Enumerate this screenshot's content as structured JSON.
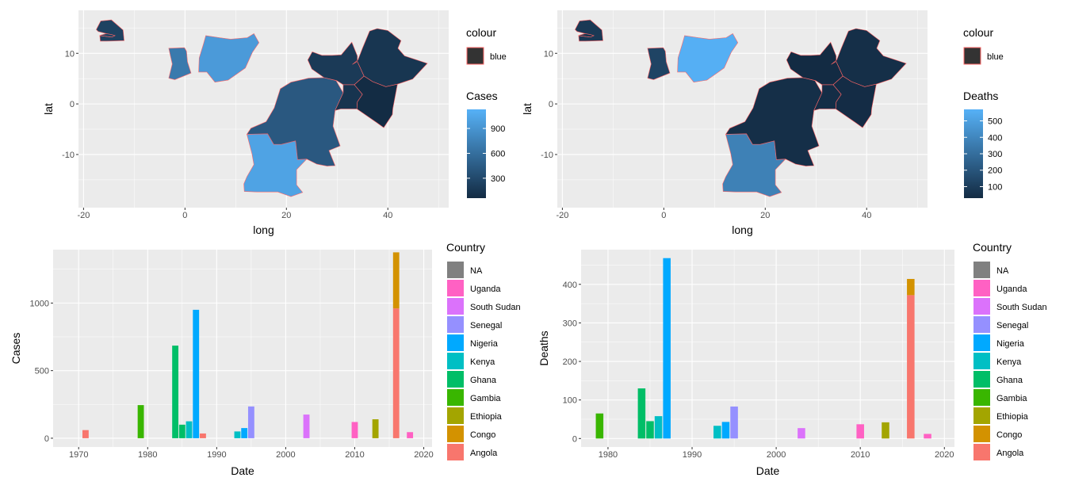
{
  "chart_data": [
    {
      "type": "map",
      "xlabel": "long",
      "ylabel": "lat",
      "xlim": [
        -21,
        52
      ],
      "ylim": [
        -20.5,
        18.5
      ],
      "x_ticks": [
        -20,
        0,
        20,
        40
      ],
      "y_ticks": [
        -10,
        0,
        10
      ],
      "x_tick_labels": [
        "-20",
        "0",
        "20",
        "40"
      ],
      "y_tick_labels": [
        "-10",
        "0",
        "10"
      ],
      "outline_legend": {
        "title": "colour",
        "label": "blue"
      },
      "fill_legend": {
        "title": "Cases",
        "range": [
          60,
          1130
        ],
        "ticks": [
          300,
          600,
          900
        ],
        "tick_labels": [
          "300",
          "600",
          "900"
        ]
      },
      "regions": [
        {
          "country": "Senegal",
          "value": 240
        },
        {
          "country": "Gambia",
          "value": 250
        },
        {
          "country": "Ghana",
          "value": 690
        },
        {
          "country": "Nigeria",
          "value": 950
        },
        {
          "country": "Congo",
          "value": 420
        },
        {
          "country": "Angola",
          "value": 1020
        },
        {
          "country": "South Sudan",
          "value": 180
        },
        {
          "country": "Ethiopia",
          "value": 145
        },
        {
          "country": "Uganda",
          "value": 130
        },
        {
          "country": "Kenya",
          "value": 65
        }
      ]
    },
    {
      "type": "map",
      "xlabel": "long",
      "ylabel": "lat",
      "xlim": [
        -21,
        52
      ],
      "ylim": [
        -20.5,
        18.5
      ],
      "x_ticks": [
        -20,
        0,
        20,
        40
      ],
      "y_ticks": [
        -10,
        0,
        10
      ],
      "x_tick_labels": [
        "-20",
        "0",
        "20",
        "40"
      ],
      "y_tick_labels": [
        "-10",
        "0",
        "10"
      ],
      "outline_legend": {
        "title": "colour",
        "label": "blue"
      },
      "fill_legend": {
        "title": "Deaths",
        "range": [
          30,
          570
        ],
        "ticks": [
          100,
          200,
          300,
          400,
          500
        ],
        "tick_labels": [
          "100",
          "200",
          "300",
          "400",
          "500"
        ]
      },
      "regions": [
        {
          "country": "Senegal",
          "value": 85
        },
        {
          "country": "Gambia",
          "value": 65
        },
        {
          "country": "Ghana",
          "value": 130
        },
        {
          "country": "Nigeria",
          "value": 560
        },
        {
          "country": "Congo",
          "value": 45
        },
        {
          "country": "Angola",
          "value": 375
        },
        {
          "country": "South Sudan",
          "value": 30
        },
        {
          "country": "Ethiopia",
          "value": 45
        },
        {
          "country": "Uganda",
          "value": 40
        },
        {
          "country": "Kenya",
          "value": 35
        }
      ]
    },
    {
      "type": "bar",
      "xlabel": "Date",
      "ylabel": "Cases",
      "xlim": [
        1966.3,
        2021.2
      ],
      "ylim": [
        -65,
        1395
      ],
      "x_ticks": [
        1970,
        1980,
        1990,
        2000,
        2010,
        2020
      ],
      "y_ticks": [
        0,
        500,
        1000
      ],
      "x_tick_labels": [
        "1970",
        "1980",
        "1990",
        "2000",
        "2010",
        "2020"
      ],
      "y_tick_labels": [
        "0",
        "500",
        "1000"
      ],
      "legend_title": "Country",
      "bars": [
        {
          "x": 1971,
          "country": "Angola",
          "value": 60
        },
        {
          "x": 1979,
          "country": "Gambia",
          "value": 245
        },
        {
          "x": 1984,
          "country": "Ghana",
          "value": 685
        },
        {
          "x": 1985,
          "country": "Ghana",
          "value": 100
        },
        {
          "x": 1986,
          "country": "Kenya",
          "value": 125
        },
        {
          "x": 1987,
          "country": "Nigeria",
          "value": 950
        },
        {
          "x": 1988,
          "country": "Angola",
          "value": 35
        },
        {
          "x": 1993,
          "country": "Kenya",
          "value": 50
        },
        {
          "x": 1994,
          "country": "Nigeria",
          "value": 75
        },
        {
          "x": 1995,
          "country": "Senegal",
          "value": 235
        },
        {
          "x": 2003,
          "country": "South Sudan",
          "value": 175
        },
        {
          "x": 2010,
          "country": "Uganda",
          "value": 120
        },
        {
          "x": 2013,
          "country": "Ethiopia",
          "value": 140
        },
        {
          "x": 2016,
          "country": "Angola",
          "value": 960
        },
        {
          "x": 2016,
          "country": "Congo",
          "value": 415
        },
        {
          "x": 2018,
          "country": "Uganda",
          "value": 45
        }
      ]
    },
    {
      "type": "bar",
      "xlabel": "Date",
      "ylabel": "Deaths",
      "xlim": [
        1976.8,
        2021.2
      ],
      "ylim": [
        -22,
        490
      ],
      "x_ticks": [
        1980,
        1990,
        2000,
        2010,
        2020
      ],
      "y_ticks": [
        0,
        100,
        200,
        300,
        400
      ],
      "x_tick_labels": [
        "1980",
        "1990",
        "2000",
        "2010",
        "2020"
      ],
      "y_tick_labels": [
        "0",
        "100",
        "200",
        "300",
        "400"
      ],
      "legend_title": "Country",
      "bars": [
        {
          "x": 1979,
          "country": "Gambia",
          "value": 65
        },
        {
          "x": 1984,
          "country": "Ghana",
          "value": 130
        },
        {
          "x": 1985,
          "country": "Ghana",
          "value": 45
        },
        {
          "x": 1986,
          "country": "Kenya",
          "value": 58
        },
        {
          "x": 1987,
          "country": "Nigeria",
          "value": 468
        },
        {
          "x": 1993,
          "country": "Kenya",
          "value": 33
        },
        {
          "x": 1994,
          "country": "Nigeria",
          "value": 43
        },
        {
          "x": 1995,
          "country": "Senegal",
          "value": 83
        },
        {
          "x": 2003,
          "country": "South Sudan",
          "value": 27
        },
        {
          "x": 2010,
          "country": "Uganda",
          "value": 37
        },
        {
          "x": 2013,
          "country": "Ethiopia",
          "value": 42
        },
        {
          "x": 2016,
          "country": "Angola",
          "value": 372
        },
        {
          "x": 2016,
          "country": "Congo",
          "value": 42
        },
        {
          "x": 2018,
          "country": "Uganda",
          "value": 12
        }
      ]
    }
  ],
  "country_legend": [
    {
      "label": "NA",
      "color": "#808080"
    },
    {
      "label": "Uganda",
      "color": "#FF61C3"
    },
    {
      "label": "South Sudan",
      "color": "#DB72FB"
    },
    {
      "label": "Senegal",
      "color": "#9590FF"
    },
    {
      "label": "Nigeria",
      "color": "#00A9FF"
    },
    {
      "label": "Kenya",
      "color": "#00BFC4"
    },
    {
      "label": "Ghana",
      "color": "#00BE67"
    },
    {
      "label": "Gambia",
      "color": "#39B600"
    },
    {
      "label": "Ethiopia",
      "color": "#A3A500"
    },
    {
      "label": "Congo",
      "color": "#D39200"
    },
    {
      "label": "Angola",
      "color": "#F8766D"
    }
  ],
  "colors": {
    "panel_bg": "#EBEBEB",
    "grid": "#FFFFFF",
    "outline": "#FF6666",
    "outline_key_fill": "#333333",
    "gradient_low": "#132B43",
    "gradient_high": "#56B1F7"
  }
}
